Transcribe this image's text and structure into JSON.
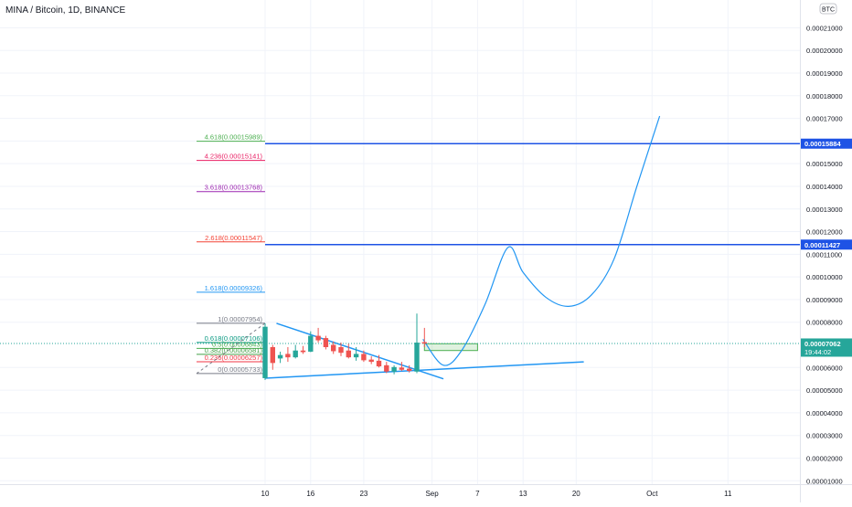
{
  "chart_data": {
    "type": "candlestick",
    "title": "MINA / Bitcoin, 1D, BINANCE",
    "currency_badge": "BTC",
    "ylim": [
      8.5e-06,
      0.000215
    ],
    "y_ticks": [
      "0.00021000",
      "0.00020000",
      "0.00019000",
      "0.00018000",
      "0.00017000",
      "0.00016000",
      "0.00015000",
      "0.00014000",
      "0.00013000",
      "0.00012000",
      "0.00011000",
      "0.00010000",
      "0.00009000",
      "0.00008000",
      "0.00006000",
      "0.00005000",
      "0.00004000",
      "0.00003000",
      "0.00002000",
      "0.00001000"
    ],
    "x_ticks": [
      {
        "label": "10",
        "day": 10
      },
      {
        "label": "16",
        "day": 16
      },
      {
        "label": "23",
        "day": 23
      },
      {
        "label": "Sep",
        "day": 32
      },
      {
        "label": "7",
        "day": 38
      },
      {
        "label": "13",
        "day": 44
      },
      {
        "label": "20",
        "day": 51
      },
      {
        "label": "Oct",
        "day": 61
      },
      {
        "label": "11",
        "day": 71
      }
    ],
    "price_badges": [
      {
        "value": "0.00015884",
        "price": 0.00015884,
        "color": "#1e53e5"
      },
      {
        "value": "0.00011427",
        "price": 0.00011427,
        "color": "#1e53e5"
      },
      {
        "value": "0.00007062",
        "time": "19:44:02",
        "price": 7.062e-05,
        "color": "#26a69a"
      }
    ],
    "horizontal_lines": [
      {
        "price": 0.00015884,
        "from_day": 10,
        "color": "#1e53e5"
      },
      {
        "price": 0.00011427,
        "from_day": 10,
        "color": "#1e53e5"
      }
    ],
    "candles": [
      {
        "day": 10,
        "open": 5.53e-05,
        "high": 7.95e-05,
        "low": 5.45e-05,
        "close": 7.8e-05
      },
      {
        "day": 11,
        "open": 6.9e-05,
        "high": 7e-05,
        "low": 5.9e-05,
        "close": 6.2e-05
      },
      {
        "day": 12,
        "open": 6.4e-05,
        "high": 6.7e-05,
        "low": 6.2e-05,
        "close": 6.55e-05
      },
      {
        "day": 13,
        "open": 6.6e-05,
        "high": 6.9e-05,
        "low": 6.25e-05,
        "close": 6.45e-05
      },
      {
        "day": 14,
        "open": 6.45e-05,
        "high": 7e-05,
        "low": 6.4e-05,
        "close": 6.75e-05
      },
      {
        "day": 15,
        "open": 6.75e-05,
        "high": 6.95e-05,
        "low": 6.6e-05,
        "close": 6.68e-05
      },
      {
        "day": 16,
        "open": 6.7e-05,
        "high": 7.6e-05,
        "low": 6.68e-05,
        "close": 7.4e-05
      },
      {
        "day": 17,
        "open": 7.4e-05,
        "high": 7.75e-05,
        "low": 7.1e-05,
        "close": 7.2e-05
      },
      {
        "day": 18,
        "open": 7.3e-05,
        "high": 7.4e-05,
        "low": 6.8e-05,
        "close": 6.9e-05
      },
      {
        "day": 19,
        "open": 7e-05,
        "high": 7.15e-05,
        "low": 6.6e-05,
        "close": 6.72e-05
      },
      {
        "day": 20,
        "open": 6.9e-05,
        "high": 7.1e-05,
        "low": 6.5e-05,
        "close": 6.65e-05
      },
      {
        "day": 21,
        "open": 6.75e-05,
        "high": 7.05e-05,
        "low": 6.4e-05,
        "close": 6.45e-05
      },
      {
        "day": 22,
        "open": 6.45e-05,
        "high": 6.9e-05,
        "low": 6.3e-05,
        "close": 6.6e-05
      },
      {
        "day": 23,
        "open": 6.6e-05,
        "high": 6.75e-05,
        "low": 6.25e-05,
        "close": 6.32e-05
      },
      {
        "day": 24,
        "open": 6.35e-05,
        "high": 6.5e-05,
        "low": 6.15e-05,
        "close": 6.25e-05
      },
      {
        "day": 25,
        "open": 6.3e-05,
        "high": 6.55e-05,
        "low": 6e-05,
        "close": 6.05e-05
      },
      {
        "day": 26,
        "open": 6.1e-05,
        "high": 6.25e-05,
        "low": 5.75e-05,
        "close": 5.82e-05
      },
      {
        "day": 27,
        "open": 5.82e-05,
        "high": 6.1e-05,
        "low": 5.7e-05,
        "close": 6.02e-05
      },
      {
        "day": 28,
        "open": 6e-05,
        "high": 6.25e-05,
        "low": 5.85e-05,
        "close": 5.9e-05
      },
      {
        "day": 29,
        "open": 5.95e-05,
        "high": 6.1e-05,
        "low": 5.78e-05,
        "close": 5.85e-05
      },
      {
        "day": 30,
        "open": 5.82e-05,
        "high": 8.38e-05,
        "low": 5.75e-05,
        "close": 7.1e-05
      },
      {
        "day": 31,
        "open": 7.12e-05,
        "high": 7.75e-05,
        "low": 6.9e-05,
        "close": 7.06e-05
      }
    ],
    "fibonacci": {
      "levels": [
        {
          "label": "4.618(0.00015989)",
          "price": 0.00015989,
          "color": "#4caf50"
        },
        {
          "label": "4.236(0.00015141)",
          "price": 0.00015141,
          "color": "#e91e63"
        },
        {
          "label": "3.618(0.00013768)",
          "price": 0.00013768,
          "color": "#9c27b0"
        },
        {
          "label": "2.618(0.00011547)",
          "price": 0.00011547,
          "color": "#f44336"
        },
        {
          "label": "1.618(0.00009326)",
          "price": 9.326e-05,
          "color": "#2196f3"
        },
        {
          "label": "1(0.00007954)",
          "price": 7.954e-05,
          "color": "#787b86"
        },
        {
          "label": "0.618(0.00007106)",
          "price": 7.106e-05,
          "color": "#089981"
        },
        {
          "label": "0.5(0.00006843)",
          "price": 6.843e-05,
          "color": "#4caf50"
        },
        {
          "label": "0.382(0.00006581)",
          "price": 6.581e-05,
          "color": "#43a047"
        },
        {
          "label": "0.236(0.00006257)",
          "price": 6.257e-05,
          "color": "#f23645"
        },
        {
          "label": "0(0.00005733)",
          "price": 5.733e-05,
          "color": "#787b86"
        }
      ]
    },
    "trendlines": [
      {
        "from": {
          "day": 11.5,
          "price": 7.95e-05
        },
        "to": {
          "day": 33.5,
          "price": 5.5e-05
        },
        "color": "#2196f3"
      },
      {
        "from": {
          "day": 10,
          "price": 5.53e-05
        },
        "to": {
          "day": 52,
          "price": 6.25e-05
        },
        "color": "#2196f3"
      }
    ],
    "projection_path": [
      {
        "day": 30.8,
        "price": 7.25e-05
      },
      {
        "day": 33.5,
        "price": 6.1e-05
      },
      {
        "day": 36,
        "price": 6.8e-05
      },
      {
        "day": 39,
        "price": 8.8e-05
      },
      {
        "day": 42,
        "price": 0.000113
      },
      {
        "day": 44,
        "price": 0.000102
      },
      {
        "day": 47,
        "price": 9.1e-05
      },
      {
        "day": 50,
        "price": 8.7e-05
      },
      {
        "day": 53,
        "price": 9.2e-05
      },
      {
        "day": 56,
        "price": 0.000108
      },
      {
        "day": 59,
        "price": 0.00014
      },
      {
        "day": 62,
        "price": 0.000171
      }
    ],
    "target_box": {
      "from_day": 31,
      "to_day": 38,
      "low": 6.75e-05,
      "high": 7.05e-05,
      "color": "#4caf50"
    }
  }
}
